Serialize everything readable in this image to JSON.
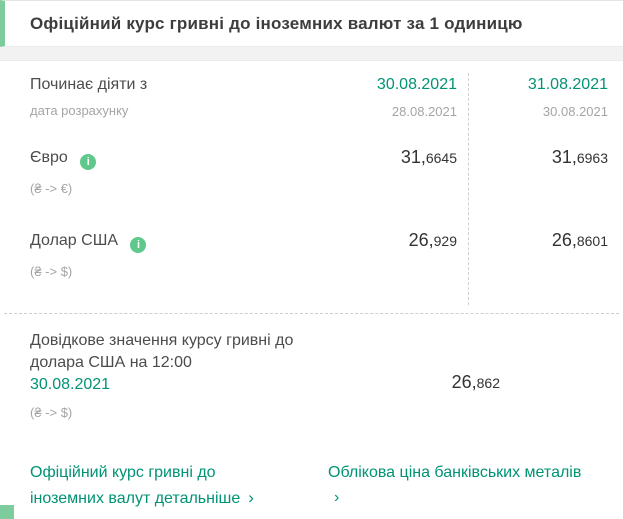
{
  "title": "Офіційний курс гривні до іноземних валют за 1 одиницю",
  "colors": {
    "accent_teal": "#009374",
    "accent_light_green": "#7ecb9b",
    "info_icon_green": "#5fc98c",
    "text_dark": "#333333",
    "text_gray": "#a5a5a5"
  },
  "icons": {
    "info": "i",
    "chevron_right": "›"
  },
  "table": {
    "effective_label": "Починає діяти з",
    "calc_label": "дата розрахунку",
    "columns": [
      {
        "effective_date": "30.08.2021",
        "calc_date": "28.08.2021"
      },
      {
        "effective_date": "31.08.2021",
        "calc_date": "30.08.2021"
      }
    ],
    "rows": [
      {
        "name": "Євро",
        "pair": "(₴ -> €)",
        "values": [
          {
            "int": "31,",
            "frac": "6645"
          },
          {
            "int": "31,",
            "frac": "6963"
          }
        ]
      },
      {
        "name": "Долар США",
        "pair": "(₴ -> $)",
        "values": [
          {
            "int": "26,",
            "frac": "929"
          },
          {
            "int": "26,",
            "frac": "8601"
          }
        ]
      }
    ]
  },
  "reference": {
    "line1": "Довідкове значення курсу гривні до",
    "line2": "долара США на 12:00",
    "date": "30.08.2021",
    "pair": "(₴ -> $)",
    "value": {
      "int": "26,",
      "frac": "862"
    }
  },
  "links": {
    "official_rates": {
      "line1": "Офіційний курс гривні до",
      "line2": "іноземних валут детальніше"
    },
    "metal_prices": {
      "label": "Облікова ціна банківських металів"
    }
  }
}
